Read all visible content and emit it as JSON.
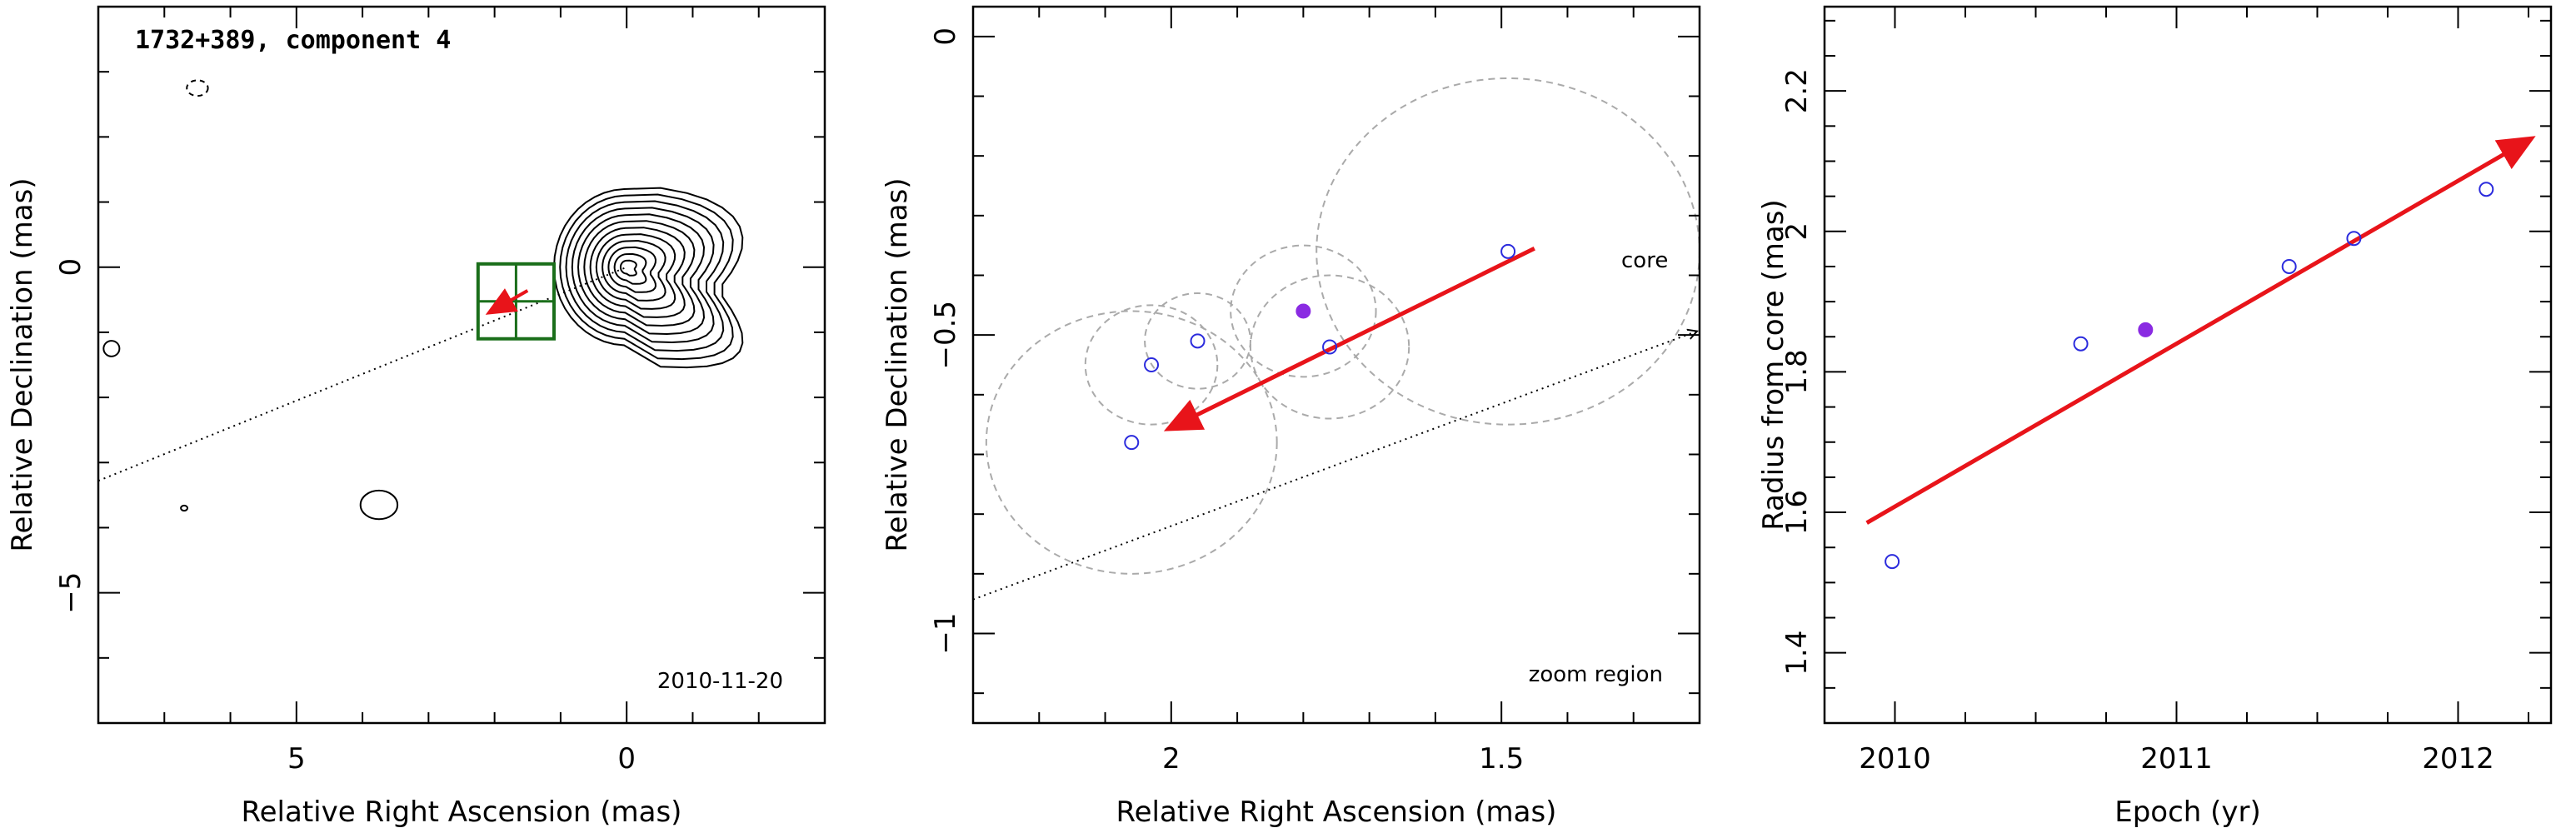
{
  "figure": {
    "colors": {
      "axis": "#000000",
      "fit_arrow": "#e8141a",
      "open_marker": "#2b2bdd",
      "filled_marker": "#8a2be2",
      "circle": "#aaaaaa",
      "box": "#1a6e1a",
      "contour": "#000000"
    }
  },
  "chart_data": [
    {
      "type": "contour",
      "title": "1732+389, component 4",
      "date_label": "2010-11-20",
      "xlabel": "Relative Right Ascension (mas)",
      "ylabel": "Relative Declination (mas)",
      "xlim": [
        8,
        -3
      ],
      "ylim": [
        -7,
        4
      ],
      "xticks": [
        {
          "v": 5,
          "label": "5"
        },
        {
          "v": 0,
          "label": "0"
        }
      ],
      "yticks": [
        {
          "v": 0,
          "label": "0"
        },
        {
          "v": -5,
          "label": "−5"
        }
      ],
      "core": [
        0,
        0
      ],
      "component_region": {
        "ra": [
          2.25,
          1.1
        ],
        "dec": [
          -1.1,
          0.05
        ]
      },
      "fit_arrow": {
        "from": [
          1.5,
          -0.36
        ],
        "to": [
          2.05,
          -0.68
        ]
      },
      "dotted_line_slope": 0.41
    },
    {
      "type": "scatter",
      "annotations": {
        "zoom": "zoom region",
        "core": "core"
      },
      "xlabel": "Relative Right Ascension (mas)",
      "ylabel": "Relative Declination (mas)",
      "xlim": [
        2.3,
        1.2
      ],
      "ylim": [
        -1.15,
        0.05
      ],
      "xticks": [
        {
          "v": 2,
          "label": "2"
        },
        {
          "v": 1.5,
          "label": "1.5"
        }
      ],
      "yticks": [
        {
          "v": 0,
          "label": "0"
        },
        {
          "v": -0.5,
          "label": "−0.5"
        },
        {
          "v": -1,
          "label": "−1"
        }
      ],
      "points": [
        {
          "x": 2.06,
          "y": -0.68,
          "err": 0.22,
          "filled": false
        },
        {
          "x": 2.03,
          "y": -0.55,
          "err": 0.1,
          "filled": false
        },
        {
          "x": 1.96,
          "y": -0.51,
          "err": 0.08,
          "filled": false
        },
        {
          "x": 1.8,
          "y": -0.46,
          "err": 0.11,
          "filled": true
        },
        {
          "x": 1.76,
          "y": -0.52,
          "err": 0.12,
          "filled": false
        },
        {
          "x": 1.49,
          "y": -0.36,
          "err": 0.29,
          "filled": false
        }
      ],
      "fit_arrow": {
        "from": [
          1.45,
          -0.355
        ],
        "to": [
          2.0,
          -0.655
        ]
      },
      "dotted_line_slope": 0.41
    },
    {
      "type": "scatter",
      "xlabel": "Epoch (yr)",
      "ylabel": "Radius from core (mas)",
      "xlim": [
        2009.75,
        2012.33
      ],
      "ylim": [
        1.3,
        2.32
      ],
      "xticks": [
        {
          "v": 2010,
          "label": "2010"
        },
        {
          "v": 2011,
          "label": "2011"
        },
        {
          "v": 2012,
          "label": "2012"
        }
      ],
      "yticks": [
        {
          "v": 1.4,
          "label": "1.4"
        },
        {
          "v": 1.6,
          "label": "1.6"
        },
        {
          "v": 1.8,
          "label": "1.8"
        },
        {
          "v": 2.0,
          "label": "2"
        },
        {
          "v": 2.2,
          "label": "2.2"
        }
      ],
      "points": [
        {
          "x": 2009.99,
          "y": 1.53,
          "filled": false
        },
        {
          "x": 2010.66,
          "y": 1.84,
          "filled": false
        },
        {
          "x": 2010.89,
          "y": 1.86,
          "filled": true
        },
        {
          "x": 2011.4,
          "y": 1.95,
          "filled": false
        },
        {
          "x": 2011.63,
          "y": 1.99,
          "filled": false
        },
        {
          "x": 2012.1,
          "y": 2.06,
          "filled": false
        }
      ],
      "fit_arrow": {
        "from": [
          2009.9,
          1.585
        ],
        "to": [
          2012.25,
          2.13
        ]
      }
    }
  ]
}
